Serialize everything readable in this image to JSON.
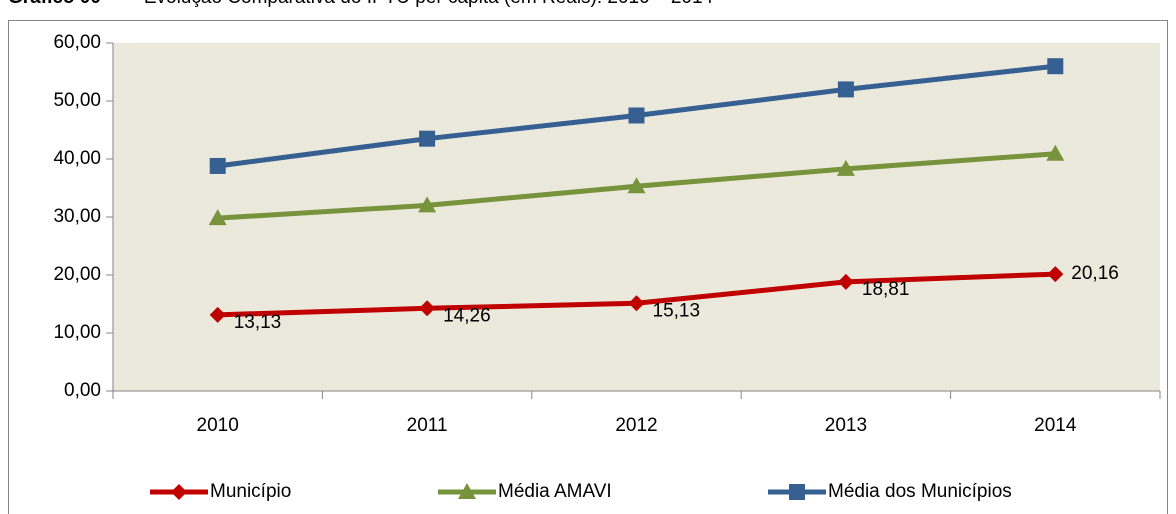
{
  "chart_data": {
    "type": "line",
    "title_label": "Gráfico 00",
    "title": "– Evolução Comparativa do IPTU per capita (em Reais): 2010 – 2014",
    "categories": [
      "2010",
      "2011",
      "2012",
      "2013",
      "2014"
    ],
    "series": [
      {
        "name": "Município",
        "color": "#c00000",
        "marker": "diamond",
        "values": [
          13.13,
          14.26,
          15.13,
          18.81,
          20.16
        ],
        "value_labels": [
          "13,13",
          "14,26",
          "15,13",
          "18,81",
          "20,16"
        ]
      },
      {
        "name": "Média AMAVI",
        "color": "#77933c",
        "marker": "triangle",
        "values": [
          29.8,
          32.0,
          35.3,
          38.3,
          40.9
        ]
      },
      {
        "name": "Média dos Municípios",
        "color": "#376092",
        "marker": "square",
        "values": [
          38.8,
          43.5,
          47.5,
          52.0,
          56.0
        ]
      }
    ],
    "ylim": [
      0,
      60
    ],
    "yticks": [
      {
        "value": 0,
        "label": "0,00"
      },
      {
        "value": 10,
        "label": "10,00"
      },
      {
        "value": 20,
        "label": "20,00"
      },
      {
        "value": 30,
        "label": "30,00"
      },
      {
        "value": 40,
        "label": "40,00"
      },
      {
        "value": 50,
        "label": "50,00"
      },
      {
        "value": 60,
        "label": "60,00"
      }
    ],
    "legend": "bottom"
  }
}
